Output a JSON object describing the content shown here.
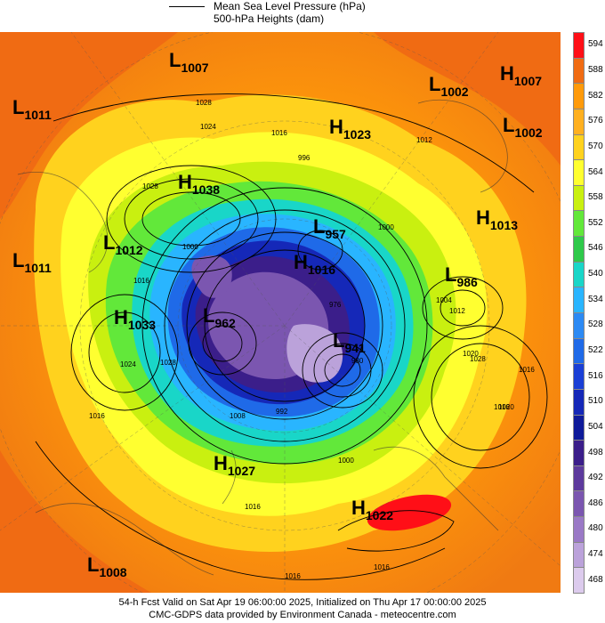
{
  "legend": {
    "mslp_label": "Mean Sea Level Pressure (hPa)",
    "heights_label": "500-hPa Heights (dam)"
  },
  "colorbar": {
    "levels": [
      "594",
      "588",
      "582",
      "576",
      "570",
      "564",
      "558",
      "552",
      "546",
      "540",
      "534",
      "528",
      "522",
      "516",
      "510",
      "504",
      "498",
      "492",
      "486",
      "480",
      "474",
      "468"
    ],
    "colors": [
      "#ff0f17",
      "#f06b13",
      "#ff9a0a",
      "#ffb020",
      "#ffd21e",
      "#ffff30",
      "#c9f010",
      "#62e83a",
      "#2ec94a",
      "#19d6c8",
      "#29b5ff",
      "#2c8af4",
      "#1f6ae8",
      "#1a3fd6",
      "#1528b8",
      "#0e1a9a",
      "#3b1e8a",
      "#5d3a9d",
      "#7b56b0",
      "#9a79c6",
      "#bba2da",
      "#dccbed"
    ]
  },
  "systems": [
    {
      "type": "L",
      "value": "1007"
    },
    {
      "type": "L",
      "value": "1011"
    },
    {
      "type": "H",
      "value": "1038"
    },
    {
      "type": "H",
      "value": "1023"
    },
    {
      "type": "L",
      "value": "1002"
    },
    {
      "type": "H",
      "value": "1007"
    },
    {
      "type": "L",
      "value": "1002"
    },
    {
      "type": "H",
      "value": "1013"
    },
    {
      "type": "L",
      "value": "1012"
    },
    {
      "type": "L",
      "value": "1011"
    },
    {
      "type": "L",
      "value": "957"
    },
    {
      "type": "H",
      "value": "1016"
    },
    {
      "type": "L",
      "value": "986"
    },
    {
      "type": "H",
      "value": "1033"
    },
    {
      "type": "L",
      "value": "962"
    },
    {
      "type": "L",
      "value": "941"
    },
    {
      "type": "H",
      "value": "1027"
    },
    {
      "type": "H",
      "value": "1022"
    },
    {
      "type": "L",
      "value": "1008"
    }
  ],
  "isobar_labels": [
    "1028",
    "1024",
    "1016",
    "1028",
    "1012",
    "1000",
    "1016",
    "1004",
    "1012",
    "1016",
    "1024",
    "1028",
    "1020",
    "1016",
    "1008",
    "1016",
    "1016",
    "996",
    "1000",
    "976",
    "980",
    "1000",
    "992",
    "1028",
    "1020",
    "1016",
    "1016"
  ],
  "footer": {
    "line1": "54-h Fcst Valid on Sat Apr 19 06:00:00 2025, Initialized on Thu Apr 17 00:00:00 2025",
    "line2": "CMC-GDPS data provided by Environment Canada - meteocentre.com"
  }
}
